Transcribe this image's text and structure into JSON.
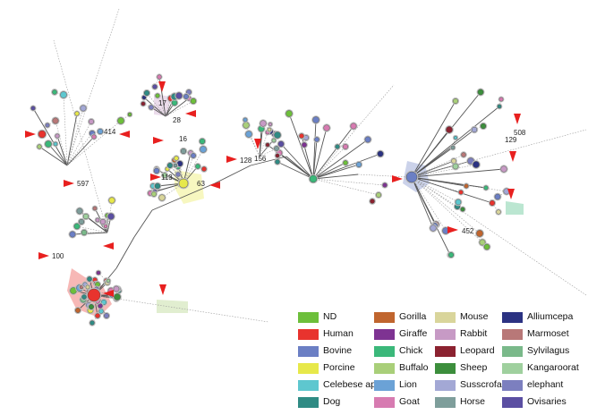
{
  "diagram": {
    "node_labels": [
      "414",
      "597",
      "100",
      "113",
      "63",
      "28",
      "128",
      "156",
      "508",
      "129",
      "452",
      "17",
      "16"
    ],
    "legend": [
      {
        "label": "ND",
        "color": "#6dbf3b"
      },
      {
        "label": "Human",
        "color": "#e8332e"
      },
      {
        "label": "Bovine",
        "color": "#6b7fc4"
      },
      {
        "label": "Porcine",
        "color": "#e7e84a"
      },
      {
        "label": "Celebese ape",
        "color": "#5ec7cf"
      },
      {
        "label": "Dog",
        "color": "#2f8b84"
      },
      {
        "label": "Gorilla",
        "color": "#c0652e"
      },
      {
        "label": "Giraffe",
        "color": "#7e3392"
      },
      {
        "label": "Chick",
        "color": "#3bb87a"
      },
      {
        "label": "Buffalo",
        "color": "#a9cf79"
      },
      {
        "label": "Lion",
        "color": "#6ba2d6"
      },
      {
        "label": "Goat",
        "color": "#d77bb1"
      },
      {
        "label": "Mouse",
        "color": "#d9d59b"
      },
      {
        "label": "Rabbit",
        "color": "#c79ac5"
      },
      {
        "label": "Leopard",
        "color": "#8b2230"
      },
      {
        "label": "Sheep",
        "color": "#3c8e3c"
      },
      {
        "label": "Susscrofa",
        "color": "#a3a8d5"
      },
      {
        "label": "Horse",
        "color": "#7e9e9b"
      },
      {
        "label": "Alliumcepa",
        "color": "#2b3282"
      },
      {
        "label": "Marmoset",
        "color": "#b87878"
      },
      {
        "label": "Sylvilagus",
        "color": "#7ab98a"
      },
      {
        "label": "Kangaroorat",
        "color": "#9fd09e"
      },
      {
        "label": "elephant",
        "color": "#7c7fbf"
      },
      {
        "label": "Ovisaries",
        "color": "#5b4fa2"
      }
    ]
  }
}
